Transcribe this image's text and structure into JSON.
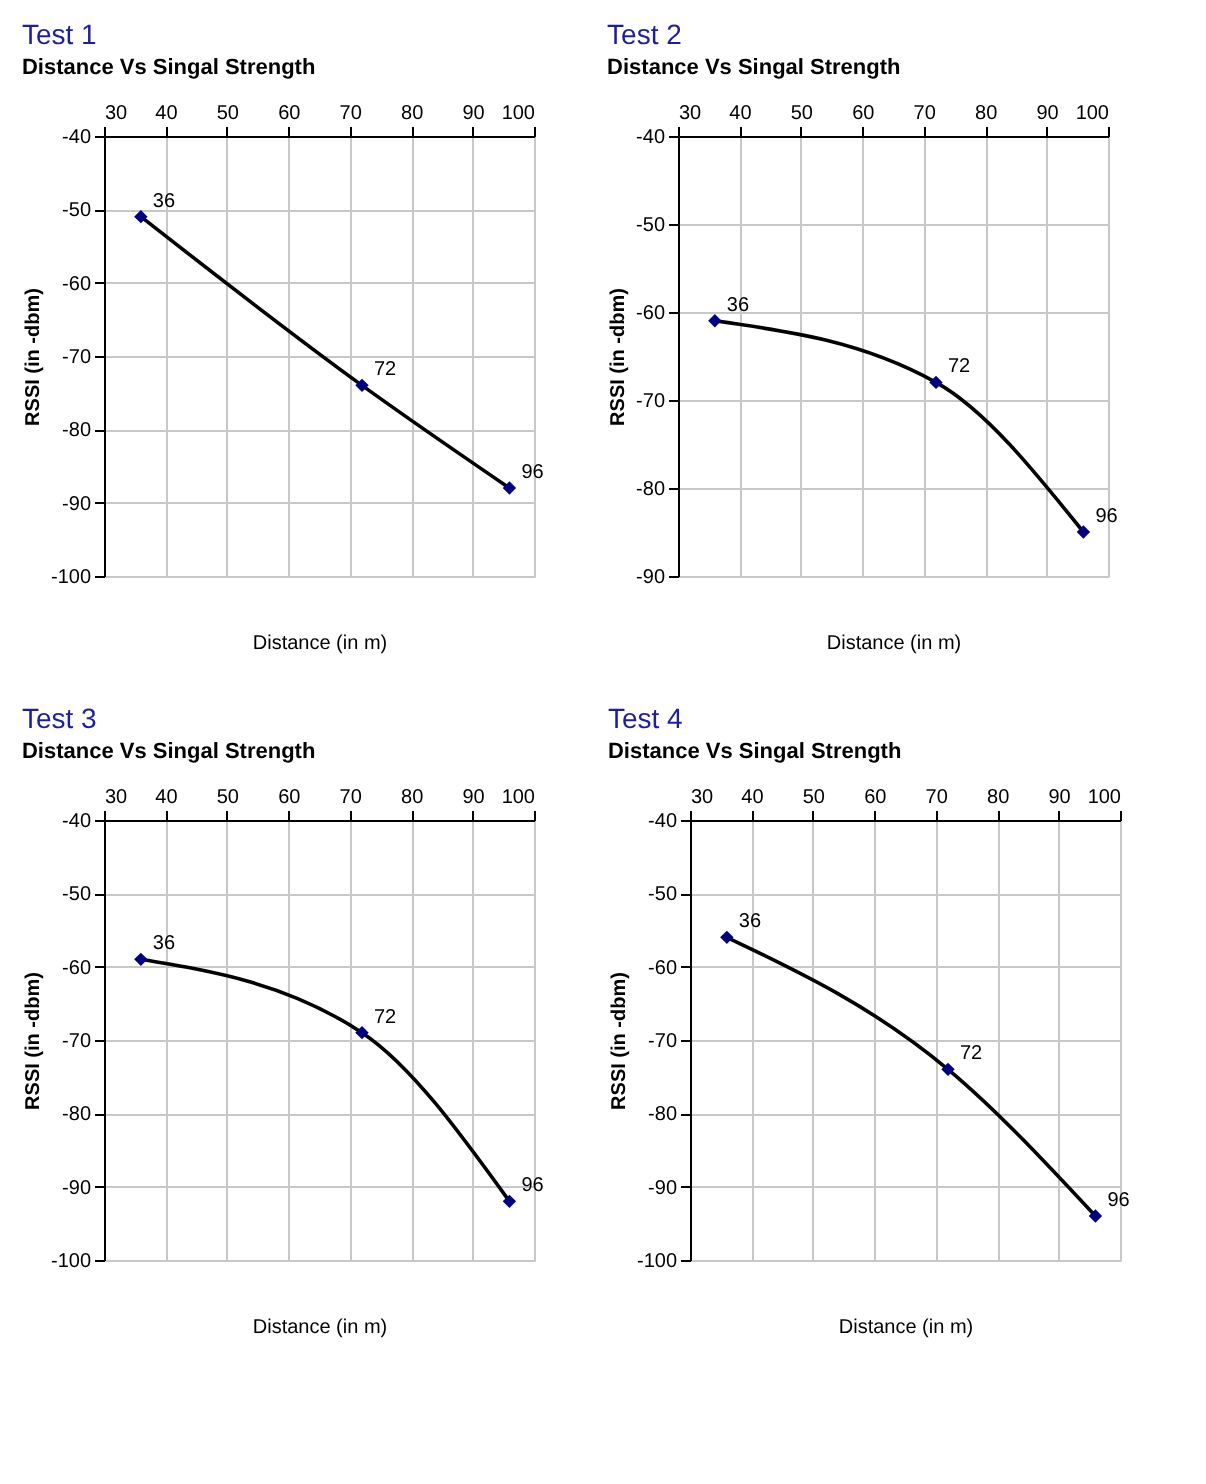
{
  "chart_data": [
    {
      "type": "line",
      "title": "Test 1",
      "subtitle": "Distance Vs Singal Strength",
      "xlabel": "Distance (in m)",
      "ylabel": "RSSI (in -dbm)",
      "xlim": [
        30,
        100
      ],
      "xticks": [
        30,
        40,
        50,
        60,
        70,
        80,
        90,
        100
      ],
      "ylim": [
        -100,
        -40
      ],
      "yticks": [
        -40,
        -50,
        -60,
        -70,
        -80,
        -90,
        -100
      ],
      "grid": true,
      "marker": "diamond",
      "line_style": "solid",
      "series": [
        {
          "color": "#000000",
          "colors": [
            "#000080",
            "#000080",
            "#000080"
          ],
          "x": [
            36,
            72,
            96
          ],
          "values": [
            -51,
            -74,
            -88
          ]
        }
      ],
      "annotations": [
        {
          "text": "36",
          "x": 36,
          "y": -51
        },
        {
          "text": "72",
          "x": 72,
          "y": -74
        },
        {
          "text": "96",
          "x": 96,
          "y": -88
        }
      ]
    },
    {
      "type": "line",
      "title": "Test 2",
      "subtitle": "Distance Vs Singal Strength",
      "xlabel": "Distance (in m)",
      "ylabel": "RSSI (in -dbm)",
      "xlim": [
        30,
        100
      ],
      "xticks": [
        30,
        40,
        50,
        60,
        70,
        80,
        90,
        100
      ],
      "ylim": [
        -90,
        -40
      ],
      "yticks": [
        -40,
        -50,
        -60,
        -70,
        -80,
        -90
      ],
      "grid": true,
      "marker": "diamond",
      "line_style": "solid",
      "series": [
        {
          "color": "#000000",
          "colors": [
            "#000080",
            "#000080",
            "#000080"
          ],
          "x": [
            36,
            72,
            96
          ],
          "values": [
            -61,
            -68,
            -85
          ]
        }
      ],
      "annotations": [
        {
          "text": "36",
          "x": 36,
          "y": -61
        },
        {
          "text": "72",
          "x": 72,
          "y": -68
        },
        {
          "text": "96",
          "x": 96,
          "y": -85
        }
      ]
    },
    {
      "type": "line",
      "title": "Test 3",
      "subtitle": "Distance Vs Singal Strength",
      "xlabel": "Distance (in m)",
      "ylabel": "RSSI (in -dbm)",
      "xlim": [
        30,
        100
      ],
      "xticks": [
        30,
        40,
        50,
        60,
        70,
        80,
        90,
        100
      ],
      "ylim": [
        -100,
        -40
      ],
      "yticks": [
        -40,
        -50,
        -60,
        -70,
        -80,
        -90,
        -100
      ],
      "grid": true,
      "marker": "diamond",
      "line_style": "solid",
      "series": [
        {
          "color": "#000000",
          "colors": [
            "#000080",
            "#000080",
            "#000080"
          ],
          "x": [
            36,
            72,
            96
          ],
          "values": [
            -59,
            -69,
            -92
          ]
        }
      ],
      "annotations": [
        {
          "text": "36",
          "x": 36,
          "y": -59
        },
        {
          "text": "72",
          "x": 72,
          "y": -69
        },
        {
          "text": "96",
          "x": 96,
          "y": -92
        }
      ]
    },
    {
      "type": "line",
      "title": "Test 4",
      "subtitle": "Distance Vs Singal Strength",
      "xlabel": "Distance (in m)",
      "ylabel": "RSSI (in -dbm)",
      "xlim": [
        30,
        100
      ],
      "xticks": [
        30,
        40,
        50,
        60,
        70,
        80,
        90,
        100
      ],
      "ylim": [
        -100,
        -40
      ],
      "yticks": [
        -40,
        -50,
        -60,
        -70,
        -80,
        -90,
        -100
      ],
      "grid": true,
      "marker": "diamond",
      "line_style": "solid",
      "series": [
        {
          "color": "#000000",
          "colors": [
            "#000080",
            "#000080",
            "#000080"
          ],
          "x": [
            36,
            72,
            96
          ],
          "values": [
            -56,
            -74,
            -94
          ]
        }
      ],
      "annotations": [
        {
          "text": "36",
          "x": 36,
          "y": -56
        },
        {
          "text": "72",
          "x": 72,
          "y": -74
        },
        {
          "text": "96",
          "x": 96,
          "y": -94
        }
      ]
    }
  ]
}
